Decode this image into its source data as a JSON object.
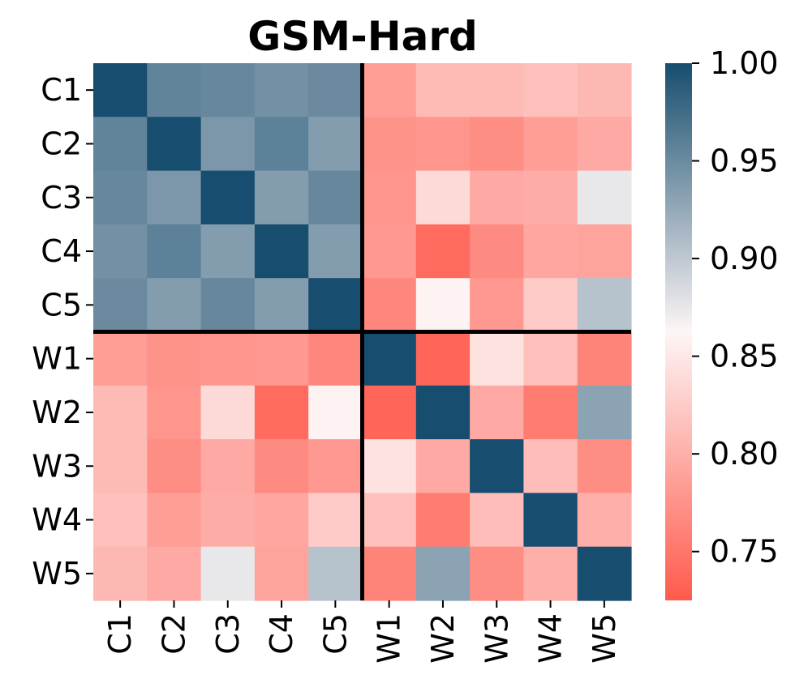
{
  "chart_data": {
    "type": "heatmap",
    "title": "GSM-Hard",
    "row_labels": [
      "C1",
      "C2",
      "C3",
      "C4",
      "C5",
      "W1",
      "W2",
      "W3",
      "W4",
      "W5"
    ],
    "col_labels": [
      "C1",
      "C2",
      "C3",
      "C4",
      "C5",
      "W1",
      "W2",
      "W3",
      "W4",
      "W5"
    ],
    "values": [
      [
        1.0,
        0.955,
        0.953,
        0.945,
        0.95,
        0.785,
        0.81,
        0.81,
        0.815,
        0.808
      ],
      [
        0.955,
        1.0,
        0.94,
        0.958,
        0.935,
        0.775,
        0.778,
        0.77,
        0.785,
        0.795
      ],
      [
        0.953,
        0.94,
        1.0,
        0.935,
        0.953,
        0.778,
        0.838,
        0.795,
        0.798,
        0.875
      ],
      [
        0.945,
        0.958,
        0.935,
        1.0,
        0.935,
        0.78,
        0.74,
        0.768,
        0.792,
        0.79
      ],
      [
        0.95,
        0.935,
        0.953,
        0.935,
        1.0,
        0.765,
        0.86,
        0.78,
        0.825,
        0.905
      ],
      [
        0.785,
        0.775,
        0.778,
        0.78,
        0.765,
        1.0,
        0.735,
        0.845,
        0.815,
        0.762
      ],
      [
        0.81,
        0.778,
        0.838,
        0.74,
        0.86,
        0.735,
        1.0,
        0.795,
        0.755,
        0.93
      ],
      [
        0.81,
        0.77,
        0.795,
        0.768,
        0.78,
        0.845,
        0.795,
        1.0,
        0.812,
        0.77
      ],
      [
        0.815,
        0.785,
        0.798,
        0.792,
        0.825,
        0.815,
        0.755,
        0.812,
        1.0,
        0.8
      ],
      [
        0.808,
        0.795,
        0.875,
        0.79,
        0.905,
        0.762,
        0.93,
        0.77,
        0.8,
        1.0
      ]
    ],
    "vmin": 0.725,
    "vmax": 1.0,
    "colorbar_ticks": [
      "1.00",
      "0.95",
      "0.90",
      "0.85",
      "0.80",
      "0.75"
    ],
    "colormap": {
      "low": "#ff5a4c",
      "mid": "#fdf6f6",
      "high": "#174d6e"
    },
    "divider_after_index": 5,
    "divider_color": "#000000",
    "grid": false,
    "legend": "colorbar right"
  }
}
